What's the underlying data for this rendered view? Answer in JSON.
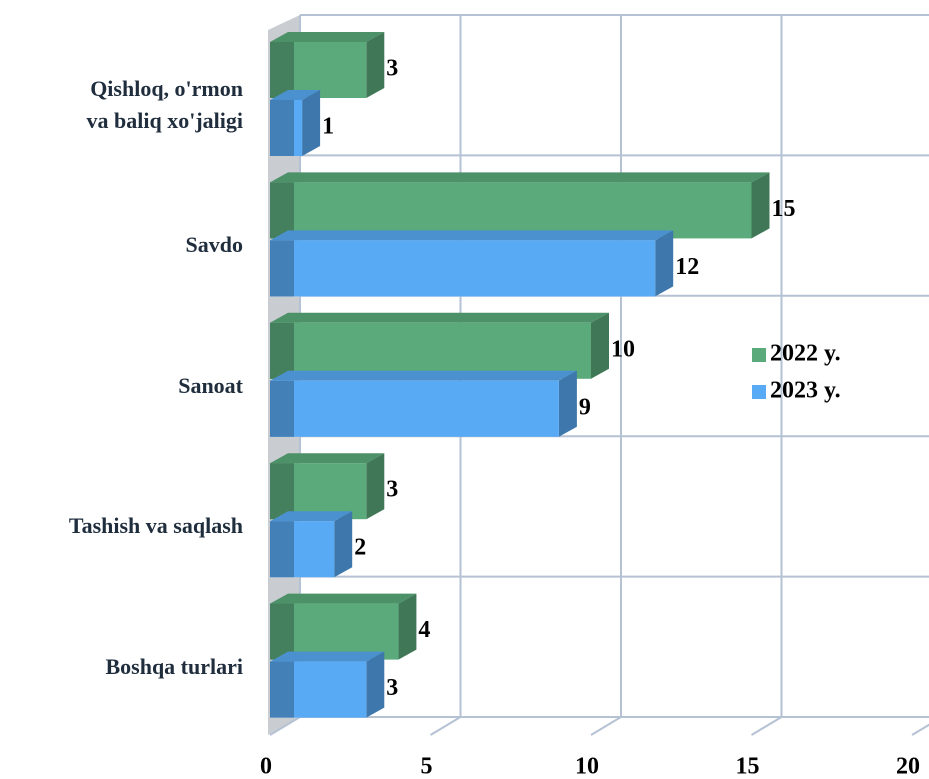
{
  "chart_data": {
    "type": "bar3d_horizontal",
    "categories": [
      "Qishloq, o'rmon va baliq xo'jaligi",
      "Savdo",
      "Sanoat",
      "Tashish va saqlash",
      "Boshqa turlari"
    ],
    "series": [
      {
        "name": "2022 y.",
        "color": "#5aaa7c",
        "values": [
          3,
          15,
          10,
          3,
          4
        ]
      },
      {
        "name": "2023 y.",
        "color": "#58aaf4",
        "values": [
          1,
          12,
          9,
          2,
          3
        ]
      }
    ],
    "xlim": [
      0,
      20
    ],
    "xticks": [
      0,
      5,
      10,
      15,
      20
    ],
    "grid": true,
    "legend": "right"
  }
}
